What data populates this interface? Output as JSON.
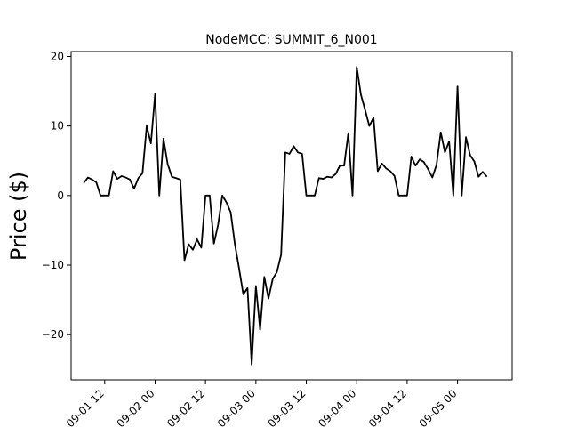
{
  "chart_data": {
    "type": "line",
    "title": "NodeMCC: SUMMIT_6_N001",
    "xlabel": "",
    "ylabel": "Price ($)",
    "x_ticks": [
      "09-01 12",
      "09-02 00",
      "09-02 12",
      "09-03 00",
      "09-03 12",
      "09-04 00",
      "09-04 12",
      "09-05 00"
    ],
    "x_tick_labels_displayed": [
      "09-01 12",
      "09-02 00",
      "09-02 12",
      "09-03 00",
      "09-03 12",
      "09-04 00",
      "09-04 12",
      "09-05 00"
    ],
    "y_ticks": [
      -20,
      -10,
      0,
      10,
      20
    ],
    "y_tick_labels": [
      "−20",
      "−10",
      "0",
      "10",
      "20"
    ],
    "xlim": [
      "09-01 04",
      "09-05 13"
    ],
    "ylim": [
      -26.5,
      20.7
    ],
    "grid": false,
    "line_color": "#000000",
    "series": [
      {
        "x": [
          "09-01 07",
          "09-01 08",
          "09-01 09",
          "09-01 10",
          "09-01 11",
          "09-01 12",
          "09-01 13",
          "09-01 14",
          "09-01 15",
          "09-01 16",
          "09-01 17",
          "09-01 18",
          "09-01 19",
          "09-01 20",
          "09-01 21",
          "09-01 22",
          "09-01 23",
          "09-02 00",
          "09-02 01",
          "09-02 02",
          "09-02 03",
          "09-02 04",
          "09-02 05",
          "09-02 06",
          "09-02 07",
          "09-02 08",
          "09-02 09",
          "09-02 10",
          "09-02 11",
          "09-02 12",
          "09-02 13",
          "09-02 14",
          "09-02 15",
          "09-02 16",
          "09-02 17",
          "09-02 18",
          "09-02 19",
          "09-02 20",
          "09-02 21",
          "09-02 22",
          "09-02 23",
          "09-03 00",
          "09-03 01",
          "09-03 02",
          "09-03 03",
          "09-03 04",
          "09-03 05",
          "09-03 06",
          "09-03 07",
          "09-03 08",
          "09-03 09",
          "09-03 10",
          "09-03 11",
          "09-03 12",
          "09-03 13",
          "09-03 14",
          "09-03 15",
          "09-03 16",
          "09-03 17",
          "09-03 18",
          "09-03 19",
          "09-03 20",
          "09-03 21",
          "09-03 22",
          "09-03 23",
          "09-04 00",
          "09-04 01",
          "09-04 02",
          "09-04 03",
          "09-04 04",
          "09-04 05",
          "09-04 06",
          "09-04 07",
          "09-04 08",
          "09-04 09",
          "09-04 10",
          "09-04 11",
          "09-04 12",
          "09-04 13",
          "09-04 14",
          "09-04 15",
          "09-04 16",
          "09-04 17",
          "09-04 18",
          "09-04 19",
          "09-04 20",
          "09-04 21",
          "09-04 22",
          "09-04 23",
          "09-05 00",
          "09-05 01",
          "09-05 02",
          "09-05 03",
          "09-05 04",
          "09-05 05",
          "09-05 06",
          "09-05 07"
        ],
        "values": [
          1.8,
          2.6,
          2.3,
          1.9,
          0.0,
          0.0,
          0.0,
          3.5,
          2.4,
          2.8,
          2.6,
          2.3,
          1.0,
          2.5,
          3.2,
          10.0,
          7.5,
          14.6,
          0.0,
          8.2,
          4.5,
          2.7,
          2.5,
          2.3,
          -9.3,
          -7.0,
          -7.8,
          -6.3,
          -7.5,
          0.0,
          0.0,
          -6.9,
          -4.2,
          0.0,
          -1.0,
          -2.4,
          -7.0,
          -10.5,
          -14.2,
          -13.3,
          -24.3,
          -13.0,
          -19.3,
          -11.7,
          -14.8,
          -12.0,
          -11.0,
          -8.5,
          6.2,
          6.0,
          7.1,
          6.2,
          6.0,
          0.0,
          0.0,
          0.0,
          2.5,
          2.4,
          2.7,
          2.6,
          3.1,
          4.3,
          4.3,
          9.0,
          0.0,
          18.5,
          14.5,
          12.3,
          10.0,
          11.2,
          3.5,
          4.6,
          3.9,
          3.5,
          2.8,
          0.0,
          0.0,
          0.0,
          5.6,
          4.3,
          5.2,
          4.8,
          3.8,
          2.6,
          4.4,
          9.1,
          6.2,
          7.8,
          0.0,
          15.7,
          0.0,
          8.4,
          5.8,
          4.9,
          2.7,
          3.4,
          2.7
        ]
      }
    ]
  }
}
